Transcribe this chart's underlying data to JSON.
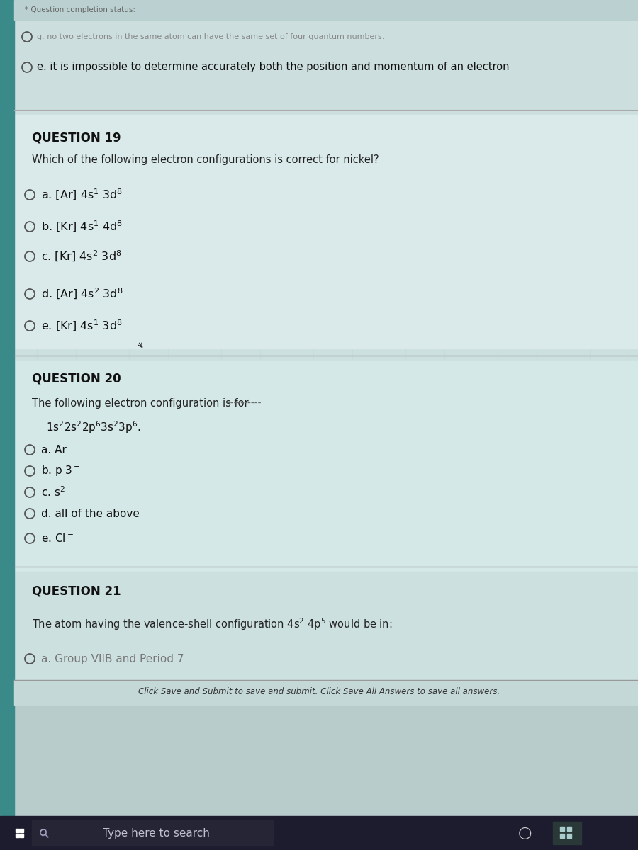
{
  "bg_main": "#cde0e0",
  "bg_top_section": "#d4e5e5",
  "bg_content": "#daeaea",
  "left_border_color": "#3a8a8a",
  "separator_color": "#b0c8c8",
  "taskbar_bg": "#1c1c2e",
  "taskbar_search_bg": "#2a2a3e",
  "taskbar_text_color": "#c0c0d0",
  "taskbar_right_bg": "#2a3a3a",
  "prev_line1": "g. no two electrons in the same atom can have the same set of four quantum numbers.",
  "prev_line2": "e. it is impossible to determine accurately both the position and momentum of an electron",
  "q19_header": "QUESTION 19",
  "q19_body": "Which of the following electron configurations is correct for nickel?",
  "q19_opts": [
    "a. [Ar] 4s$^1$ 3d$^8$",
    "b. [Kr] 4s$^1$ 4d$^8$",
    "c. [Kr] 4s$^2$ 3d$^8$",
    "d. [Ar] 4s$^2$ 3d$^8$",
    "e. [Kr] 4s$^1$ 3d$^8$"
  ],
  "q20_header": "QUESTION 20",
  "q20_body": "The following electron configuration is for",
  "q20_dashes": "         ----------",
  "q20_config": "1s$^2$2s$^2$2p$^6$3s$^2$3p$^6$.",
  "q20_opts": [
    "a. Ar",
    "b. p 3$^-$",
    "c. s$^{2-}$",
    "d. all of the above",
    "e. Cl$^-$"
  ],
  "q21_header": "QUESTION 21",
  "q21_body": "The atom having the valence-shell configuration 4s$^2$ 4p$^5$ would be in:",
  "q21_opts": [
    "a. Group VIIB and Period 7"
  ],
  "footer": "Click Save and Submit to save and submit. Click Save All Answers to save all answers.",
  "search_text": "Type here to search"
}
